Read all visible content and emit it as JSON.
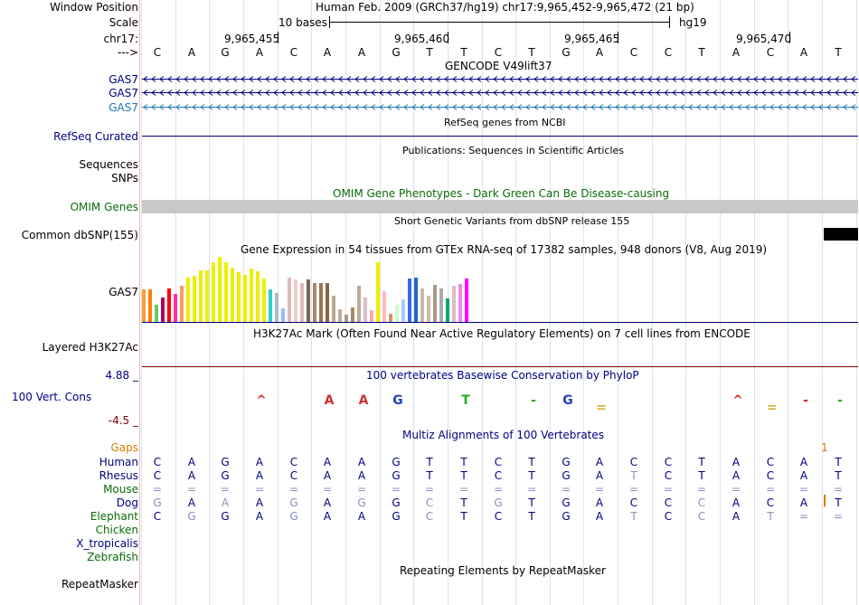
{
  "colors": {
    "navy": "#000080",
    "green": "#0b6b0b",
    "orange": "#d08000",
    "maroon": "#800000",
    "teal": "#1e78b4",
    "grey": "#c8c8c8"
  },
  "header": {
    "window_position_label": "Window Position",
    "scale_label": "Scale",
    "chrom_label": "chr17:",
    "strand_label": "--->",
    "assembly_text": "Human Feb. 2009 (GRCh37/hg19)   chr17:9,965,452-9,965,472 (21 bp)",
    "scale_text": "10 bases",
    "db_text": "hg19",
    "coords": [
      "9,965,455",
      "9,965,460",
      "9,965,465",
      "9,965,470"
    ]
  },
  "sequence": [
    "C",
    "A",
    "G",
    "A",
    "C",
    "A",
    "A",
    "G",
    "T",
    "T",
    "C",
    "T",
    "G",
    "A",
    "C",
    "C",
    "T",
    "A",
    "C",
    "A",
    "T"
  ],
  "tracks": {
    "gencode": {
      "title": "GENCODE V49lift37",
      "genes": [
        "GAS7",
        "GAS7",
        "GAS7"
      ]
    },
    "refseq": {
      "title": "RefSeq genes from NCBI",
      "label": "RefSeq Curated"
    },
    "publications": {
      "title": "Publications: Sequences in Scientific Articles",
      "labels": [
        "Sequences",
        "SNPs"
      ]
    },
    "omim": {
      "title": "OMIM Gene Phenotypes - Dark Green Can Be Disease-causing",
      "label": "OMIM Genes"
    },
    "dbsnp": {
      "title": "Short Genetic Variants from dbSNP release 155",
      "label": "Common dbSNP(155)"
    },
    "gtex": {
      "title": "Gene Expression in 54 tissues from GTEx RNA-seq of 17382 samples, 948 donors (V8, Aug 2019)",
      "label": "GAS7",
      "bars": [
        {
          "v": 0.5,
          "c": "#ff9933"
        },
        {
          "v": 0.5,
          "c": "#ff7f00"
        },
        {
          "v": 0.26,
          "c": "#66cc66"
        },
        {
          "v": 0.38,
          "c": "#aa0066"
        },
        {
          "v": 0.51,
          "c": "#ff0000"
        },
        {
          "v": 0.43,
          "c": "#ff3399"
        },
        {
          "v": 0.56,
          "c": "#ff9966"
        },
        {
          "v": 0.68,
          "c": "#eeee00"
        },
        {
          "v": 0.71,
          "c": "#eeee00"
        },
        {
          "v": 0.79,
          "c": "#eeee00"
        },
        {
          "v": 0.79,
          "c": "#eeee00"
        },
        {
          "v": 0.91,
          "c": "#eeee00"
        },
        {
          "v": 1.0,
          "c": "#eeee00"
        },
        {
          "v": 0.92,
          "c": "#eeee00"
        },
        {
          "v": 0.83,
          "c": "#eeee00"
        },
        {
          "v": 0.77,
          "c": "#eeee00"
        },
        {
          "v": 0.72,
          "c": "#eeee00"
        },
        {
          "v": 0.82,
          "c": "#eeee00"
        },
        {
          "v": 0.78,
          "c": "#eeee00"
        },
        {
          "v": 0.67,
          "c": "#eeee00"
        },
        {
          "v": 0.5,
          "c": "#33cccc"
        },
        {
          "v": 0.45,
          "c": "#aabbcc"
        },
        {
          "v": 0.21,
          "c": "#99bbff"
        },
        {
          "v": 0.68,
          "c": "#ddbbbb"
        },
        {
          "v": 0.65,
          "c": "#eecccc"
        },
        {
          "v": 0.6,
          "c": "#ddbbbb"
        },
        {
          "v": 0.65,
          "c": "#776655"
        },
        {
          "v": 0.6,
          "c": "#aa8866"
        },
        {
          "v": 0.6,
          "c": "#997755"
        },
        {
          "v": 0.6,
          "c": "#886644"
        },
        {
          "v": 0.4,
          "c": "#bbaa99"
        },
        {
          "v": 0.2,
          "c": "#bbaa99"
        },
        {
          "v": 0.11,
          "c": "#aa9988"
        },
        {
          "v": 0.22,
          "c": "#aa8866"
        },
        {
          "v": 0.56,
          "c": "#bbaa99"
        },
        {
          "v": 0.38,
          "c": "#ddbbcc"
        },
        {
          "v": 0.18,
          "c": "#ffaaaa"
        },
        {
          "v": 0.92,
          "c": "#eeee00"
        },
        {
          "v": 0.47,
          "c": "#ffbbbb"
        },
        {
          "v": 0.13,
          "c": "#cc9966"
        },
        {
          "v": 0.26,
          "c": "#ccffcc"
        },
        {
          "v": 0.35,
          "c": "#aaccff"
        },
        {
          "v": 0.66,
          "c": "#3366ff"
        },
        {
          "v": 0.68,
          "c": "#2266cc"
        },
        {
          "v": 0.52,
          "c": "#ccbbaa"
        },
        {
          "v": 0.4,
          "c": "#ccbbaa"
        },
        {
          "v": 0.57,
          "c": "#aa9988"
        },
        {
          "v": 0.52,
          "c": "#aaaaaa"
        },
        {
          "v": 0.36,
          "c": "#00aa66"
        },
        {
          "v": 0.56,
          "c": "#ddbbcc"
        },
        {
          "v": 0.58,
          "c": "#ee88ee"
        },
        {
          "v": 0.66,
          "c": "#ff00ff"
        }
      ]
    },
    "h3k27ac": {
      "title": "H3K27Ac Mark (Often Found Near Active Regulatory Elements) on 7 cell lines from ENCODE",
      "label": "Layered H3K27Ac"
    },
    "phylop": {
      "title": "100 vertebrates Basewise Conservation by PhyloP",
      "label": "100 Vert. Cons",
      "max_label": "4.88 _",
      "min_label": "-4.5 _",
      "glyphs": [
        {
          "i": 3,
          "ch": "^",
          "c": "#d03030"
        },
        {
          "i": 5,
          "ch": "A",
          "c": "#d03030"
        },
        {
          "i": 6,
          "ch": "A",
          "c": "#d03030"
        },
        {
          "i": 7,
          "ch": "G",
          "c": "#2040c0"
        },
        {
          "i": 9,
          "ch": "T",
          "c": "#20b020"
        },
        {
          "i": 11,
          "ch": "-",
          "c": "#20b020"
        },
        {
          "i": 12,
          "ch": "G",
          "c": "#2040c0"
        },
        {
          "i": 13,
          "ch": "=",
          "c": "#d0b030"
        },
        {
          "i": 17,
          "ch": "^",
          "c": "#d03030"
        },
        {
          "i": 18,
          "ch": "=",
          "c": "#d0b030"
        },
        {
          "i": 19,
          "ch": "-",
          "c": "#d03030"
        },
        {
          "i": 20,
          "ch": "-",
          "c": "#20b020"
        }
      ]
    },
    "multiz": {
      "title": "Multiz Alignments of 100 Vertebrates",
      "gaps_label": "Gaps",
      "gaps_value": "1",
      "species": [
        {
          "name": "Human",
          "color": "#000080",
          "bases": [
            "C",
            "A",
            "G",
            "A",
            "C",
            "A",
            "A",
            "G",
            "T",
            "T",
            "C",
            "T",
            "G",
            "A",
            "C",
            "C",
            "T",
            "A",
            "C",
            "A",
            "T"
          ],
          "dim": []
        },
        {
          "name": "Rhesus",
          "color": "#000080",
          "bases": [
            "C",
            "A",
            "G",
            "A",
            "C",
            "A",
            "A",
            "G",
            "T",
            "T",
            "C",
            "T",
            "G",
            "A",
            "T",
            "C",
            "T",
            "A",
            "C",
            "A",
            "T"
          ],
          "dim": [
            14
          ]
        },
        {
          "name": "Mouse",
          "color": "#0b6b0b",
          "bases": [
            "=",
            "=",
            "=",
            "=",
            "=",
            "=",
            "=",
            "=",
            "=",
            "=",
            "=",
            "=",
            "=",
            "=",
            "=",
            "=",
            "=",
            "=",
            "=",
            "=",
            "="
          ],
          "dim": [
            0,
            1,
            2,
            3,
            4,
            5,
            6,
            7,
            8,
            9,
            10,
            11,
            12,
            13,
            14,
            15,
            16,
            17,
            18,
            19,
            20
          ]
        },
        {
          "name": "Dog",
          "color": "#000080",
          "bases": [
            "G",
            "A",
            "A",
            "A",
            "G",
            "A",
            "G",
            "G",
            "C",
            "T",
            "G",
            "T",
            "G",
            "A",
            "C",
            "C",
            "C",
            "A",
            "C",
            "A",
            "T"
          ],
          "dim": [
            0,
            2,
            4,
            6,
            8,
            10,
            16
          ]
        },
        {
          "name": "Elephant",
          "color": "#0b6b0b",
          "bases": [
            "C",
            "G",
            "G",
            "A",
            "G",
            "A",
            "A",
            "G",
            "C",
            "T",
            "C",
            "T",
            "G",
            "A",
            "T",
            "C",
            "C",
            "A",
            "T",
            "=",
            "="
          ],
          "dim": [
            1,
            4,
            8,
            14,
            16,
            18,
            19,
            20
          ]
        },
        {
          "name": "Chicken",
          "color": "#0b6b0b",
          "bases": [],
          "dim": []
        },
        {
          "name": "X_tropicalis",
          "color": "#000080",
          "bases": [],
          "dim": []
        },
        {
          "name": "Zebrafish",
          "color": "#0b6b0b",
          "bases": [],
          "dim": []
        }
      ]
    },
    "repeatmasker": {
      "title": "Repeating Elements by RepeatMasker",
      "label": "RepeatMasker"
    }
  }
}
